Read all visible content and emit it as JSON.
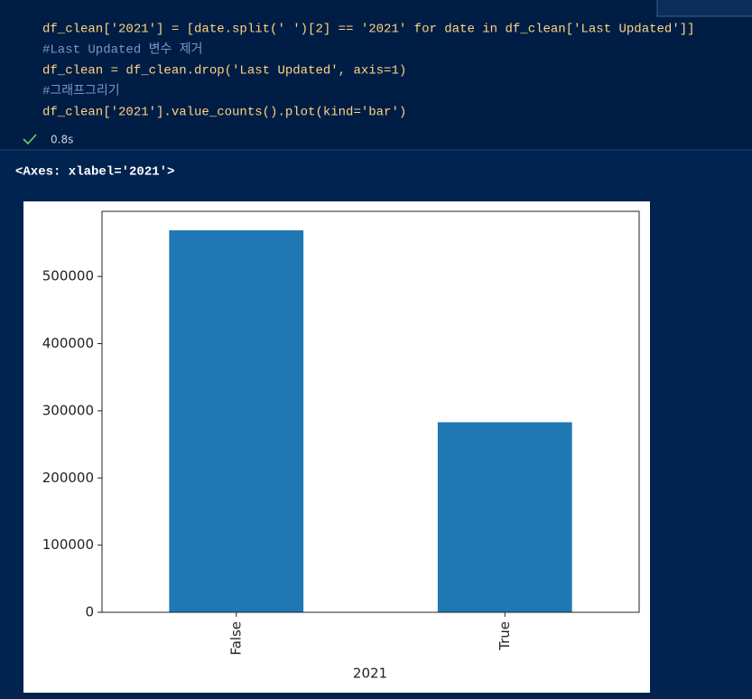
{
  "code_cell": {
    "lines": [
      "df_clean['2021'] = [date.split(' ')[2] == '2021' for date in df_clean['Last Updated']]",
      "#Last Updated 변수 제거",
      "df_clean = df_clean.drop('Last Updated', axis=1)",
      "#그래프그리기",
      "df_clean['2021'].value_counts().plot(kind='bar')"
    ],
    "status": "0.8s"
  },
  "output": {
    "text": "<Axes: xlabel='2021'>"
  },
  "chart_data": {
    "type": "bar",
    "x_label": "2021",
    "categories": [
      "False",
      "True"
    ],
    "values": [
      568700,
      283000
    ],
    "color": "#1f77b4",
    "ylim": [
      0,
      597000
    ],
    "yticks": [
      0,
      100000,
      200000,
      300000,
      400000,
      500000
    ],
    "grid": false
  }
}
